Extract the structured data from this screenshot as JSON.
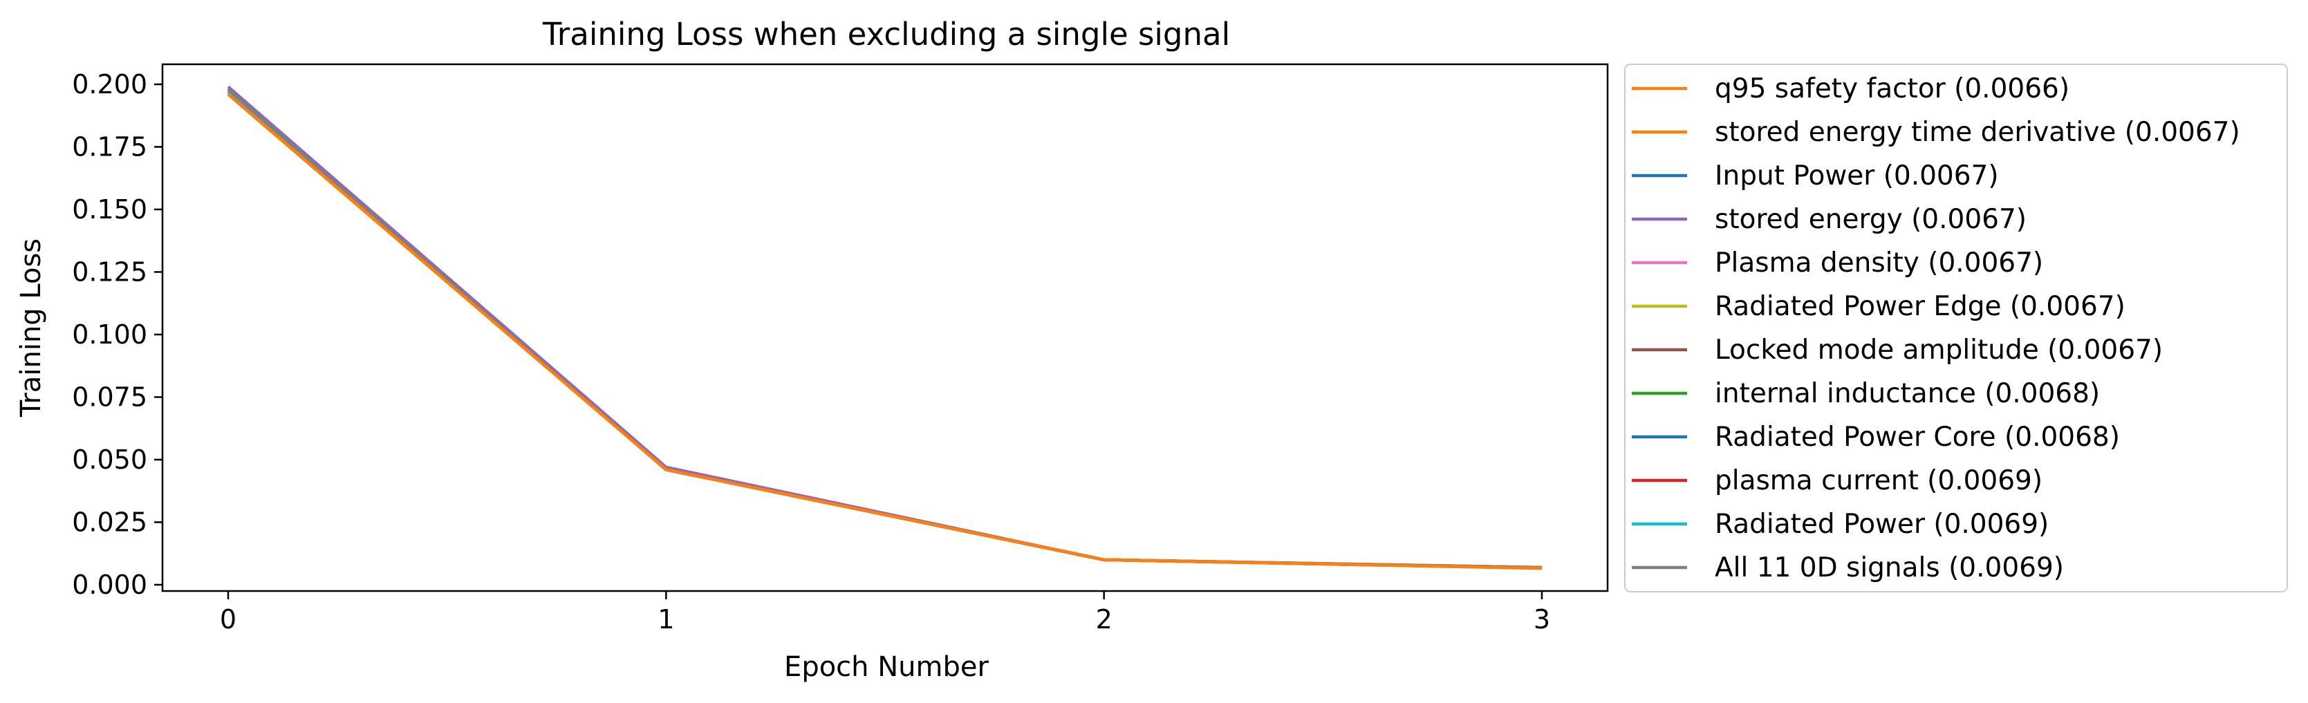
{
  "chart_data": {
    "type": "line",
    "title": "Training Loss when excluding a single signal",
    "xlabel": "Epoch Number",
    "ylabel": "Training Loss",
    "x": [
      0,
      1,
      2,
      3
    ],
    "xticks": [
      "0",
      "1",
      "2",
      "3"
    ],
    "yticks": [
      "0.000",
      "0.025",
      "0.050",
      "0.075",
      "0.100",
      "0.125",
      "0.150",
      "0.175",
      "0.200"
    ],
    "xlim": [
      -0.15,
      3.15
    ],
    "ylim": [
      -0.0025,
      0.208
    ],
    "grid": false,
    "legend_position": "outside-right",
    "series": [
      {
        "name": "q95 safety factor (0.0066)",
        "color": "#ff7f0e",
        "values": [
          0.196,
          0.046,
          0.01,
          0.0066
        ]
      },
      {
        "name": "stored energy time derivative (0.0067)",
        "color": "#ff7f0e",
        "values": [
          0.197,
          0.046,
          0.01,
          0.0067
        ]
      },
      {
        "name": "Input Power (0.0067)",
        "color": "#1f77b4",
        "values": [
          0.198,
          0.046,
          0.01,
          0.0067
        ]
      },
      {
        "name": "stored energy (0.0067)",
        "color": "#9467bd",
        "values": [
          0.199,
          0.047,
          0.01,
          0.0067
        ]
      },
      {
        "name": "Plasma density (0.0067)",
        "color": "#e377c2",
        "values": [
          0.197,
          0.046,
          0.01,
          0.0067
        ]
      },
      {
        "name": "Radiated Power Edge (0.0067)",
        "color": "#bcbd22",
        "values": [
          0.197,
          0.046,
          0.01,
          0.0067
        ]
      },
      {
        "name": "Locked mode amplitude (0.0067)",
        "color": "#8c564b",
        "values": [
          0.198,
          0.046,
          0.01,
          0.0067
        ]
      },
      {
        "name": "internal inductance (0.0068)",
        "color": "#2ca02c",
        "values": [
          0.197,
          0.046,
          0.01,
          0.0068
        ]
      },
      {
        "name": "Radiated Power Core (0.0068)",
        "color": "#1f77b4",
        "values": [
          0.198,
          0.046,
          0.01,
          0.0068
        ]
      },
      {
        "name": "plasma current (0.0069)",
        "color": "#d62728",
        "values": [
          0.197,
          0.046,
          0.01,
          0.0069
        ]
      },
      {
        "name": "Radiated Power (0.0069)",
        "color": "#17becf",
        "values": [
          0.197,
          0.046,
          0.01,
          0.0069
        ]
      },
      {
        "name": "All 11 0D signals (0.0069)",
        "color": "#7f7f7f",
        "values": [
          0.198,
          0.046,
          0.01,
          0.0069
        ]
      }
    ]
  }
}
